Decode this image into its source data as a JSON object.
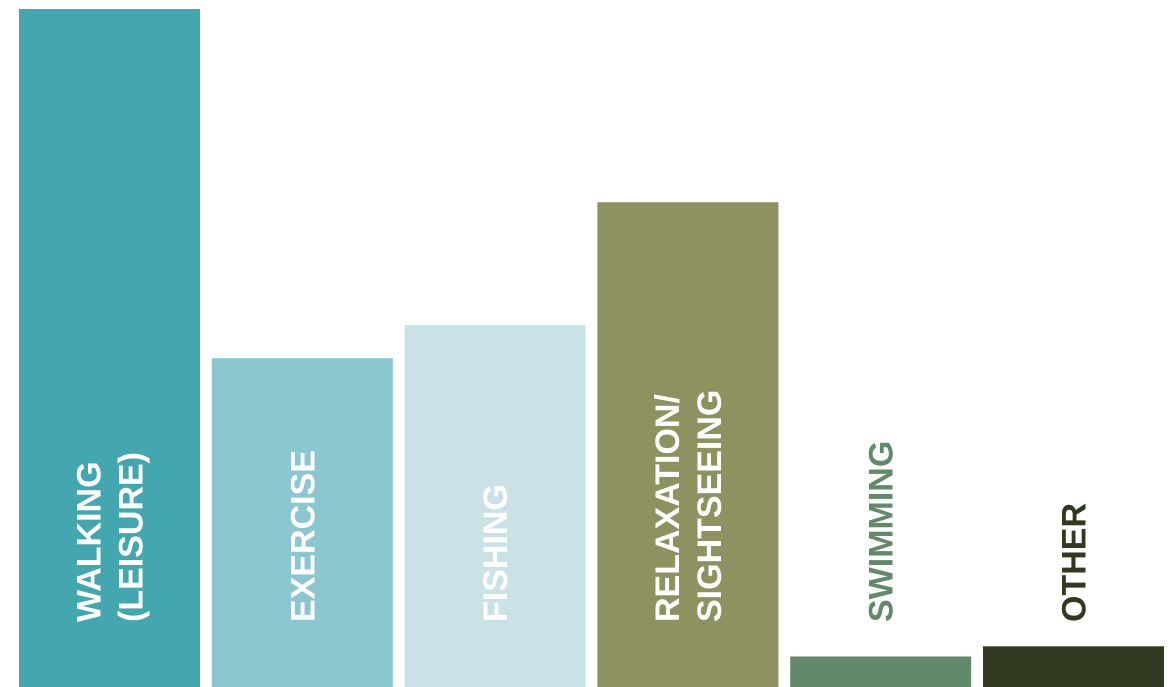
{
  "chart_data": {
    "type": "bar",
    "title": "",
    "xlabel": "",
    "ylabel": "",
    "ylim": [
      0,
      100
    ],
    "grid": false,
    "legend": "none",
    "categories": [
      "WALKING (LEISURE)",
      "EXERCISE",
      "FISHING",
      "RELAXATION/ SIGHTSEEING",
      "SWIMMING",
      "OTHER"
    ],
    "label_lines": [
      [
        "WALKING",
        "(LEISURE)"
      ],
      [
        "EXERCISE"
      ],
      [
        "FISHING"
      ],
      [
        "RELAXATION/",
        "SIGHTSEEING"
      ],
      [
        "SWIMMING"
      ],
      [
        "OTHER"
      ]
    ],
    "values": [
      100,
      48.5,
      53.4,
      71.5,
      4.5,
      6.0
    ],
    "bar_colors": [
      "#44a6ae",
      "#8cc6d0",
      "#cae2e6",
      "#8e9160",
      "#628a6a",
      "#313a20"
    ],
    "label_colors": [
      "#ffffff",
      "#ffffff",
      "#ffffff",
      "#ffffff",
      "#628a6a",
      "#313a20"
    ]
  }
}
